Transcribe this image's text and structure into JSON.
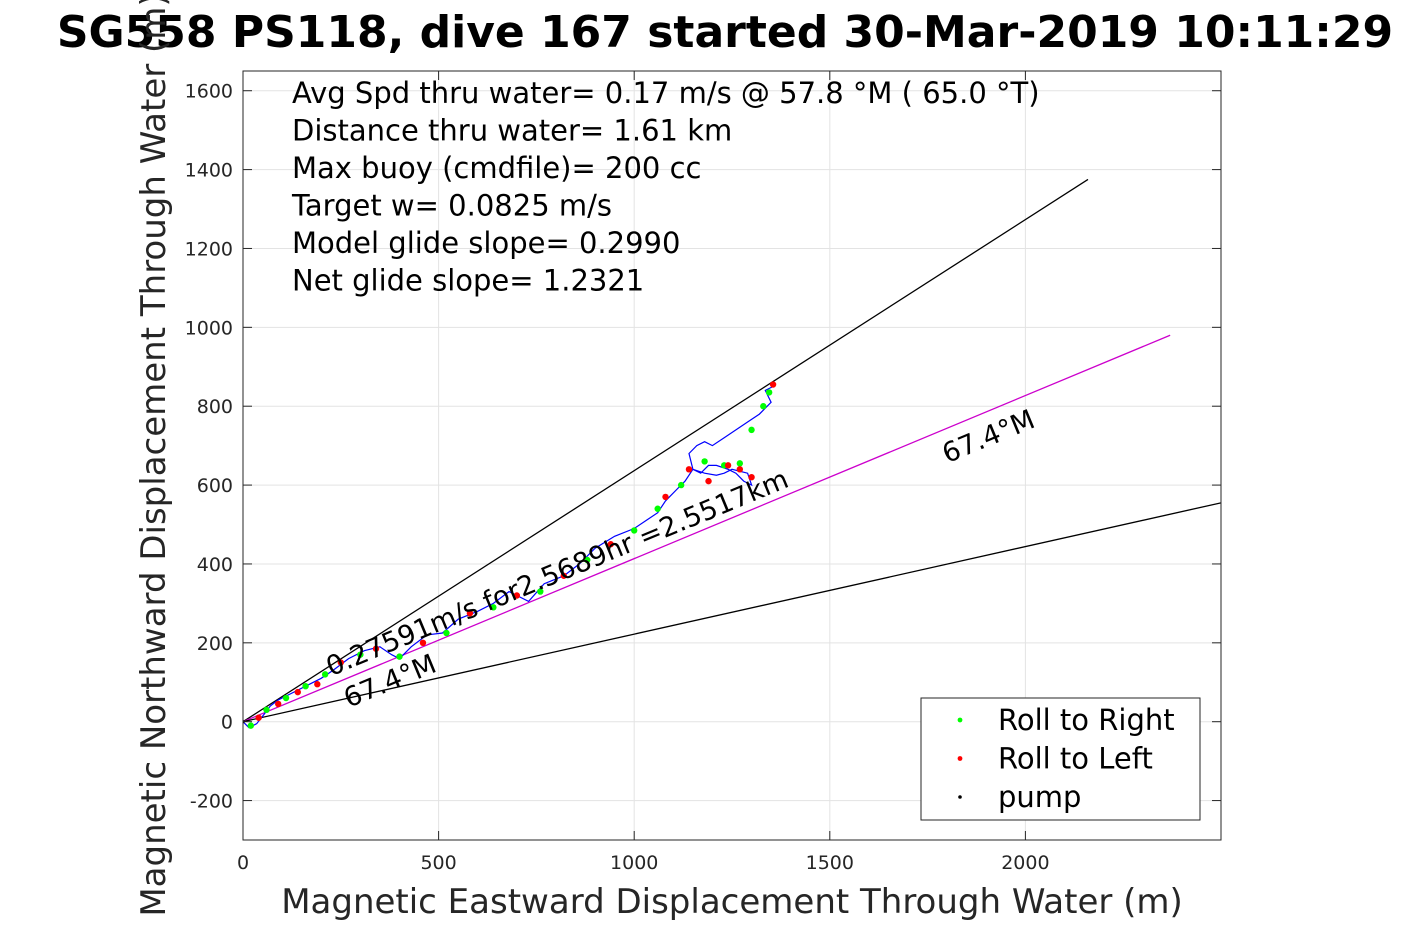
{
  "chart_data": {
    "type": "line",
    "title": "SG558 PS118, dive 167 started 30-Mar-2019 10:11:29",
    "xlabel": "Magnetic Eastward Displacement Through Water (m)",
    "ylabel": "Magnetic Northward Displacement Through Water (m)",
    "xlim": [
      0,
      2500
    ],
    "ylim": [
      -300,
      1650
    ],
    "xticks": [
      0,
      500,
      1000,
      1500,
      2000
    ],
    "yticks": [
      -200,
      0,
      200,
      400,
      600,
      800,
      1000,
      1200,
      1400,
      1600
    ],
    "grid": true,
    "info_lines": [
      "Avg Spd thru water=  0.17 m/s @  57.8 °M ( 65.0 °T)",
      "Distance thru water=  1.61 km",
      "Max buoy (cmdfile)= 200 cc",
      "Target w= 0.0825 m/s",
      "Model glide slope= 0.2990",
      "Net glide slope= 1.2321"
    ],
    "reference_lines": [
      {
        "x": [
          0,
          2160
        ],
        "y": [
          0,
          1375
        ],
        "color": "#000000"
      },
      {
        "x": [
          0,
          2370
        ],
        "y": [
          0,
          980
        ],
        "color": "#cc00cc"
      },
      {
        "x": [
          0,
          2500
        ],
        "y": [
          0,
          555
        ],
        "color": "#000000"
      }
    ],
    "annotations": [
      {
        "text": "0.27591m/s for2.5689hr =2.5517km",
        "x": 225,
        "y": 115,
        "angle": 22.5
      },
      {
        "text": "67.4°M",
        "x": 1800,
        "y": 655,
        "angle": 22.5
      },
      {
        "text": "67.4°M",
        "x": 270,
        "y": 35,
        "angle": 22.5
      }
    ],
    "track": {
      "color": "#0000ff",
      "x": [
        0,
        15,
        35,
        55,
        70,
        90,
        120,
        160,
        200,
        230,
        270,
        310,
        350,
        380,
        400,
        430,
        470,
        510,
        550,
        600,
        640,
        680,
        730,
        770,
        820,
        860,
        900,
        950,
        1000,
        1030,
        1060,
        1080,
        1110,
        1130,
        1150,
        1170,
        1190,
        1210,
        1240,
        1260,
        1280,
        1300,
        1290,
        1250,
        1230,
        1210,
        1180,
        1150,
        1140,
        1160,
        1180,
        1200,
        1230,
        1260,
        1290,
        1320,
        1350,
        1335,
        1355
      ],
      "y": [
        0,
        -15,
        -5,
        20,
        40,
        55,
        70,
        90,
        110,
        130,
        160,
        180,
        190,
        170,
        160,
        190,
        220,
        225,
        260,
        280,
        300,
        330,
        305,
        350,
        370,
        400,
        440,
        470,
        490,
        510,
        530,
        560,
        590,
        610,
        640,
        630,
        650,
        650,
        640,
        630,
        610,
        600,
        630,
        640,
        630,
        625,
        630,
        640,
        680,
        700,
        710,
        700,
        720,
        740,
        760,
        780,
        810,
        840,
        850
      ]
    },
    "series": [
      {
        "name": "Roll to Right",
        "color": "#00ff00",
        "marker": "dot",
        "x": [
          20,
          60,
          110,
          160,
          210,
          300,
          400,
          520,
          640,
          760,
          880,
          1000,
          1060,
          1120,
          1180,
          1230,
          1270,
          1300,
          1330,
          1345
        ],
        "y": [
          -10,
          30,
          60,
          90,
          120,
          170,
          165,
          225,
          290,
          330,
          410,
          485,
          540,
          600,
          660,
          650,
          655,
          740,
          800,
          835
        ]
      },
      {
        "name": "Roll to Left",
        "color": "#ff0000",
        "marker": "dot",
        "x": [
          40,
          90,
          140,
          190,
          250,
          340,
          460,
          580,
          700,
          820,
          940,
          1080,
          1140,
          1190,
          1240,
          1270,
          1300,
          1355
        ],
        "y": [
          10,
          45,
          75,
          95,
          150,
          185,
          200,
          275,
          320,
          370,
          450,
          570,
          640,
          610,
          650,
          640,
          620,
          855
        ]
      },
      {
        "name": "pump",
        "color": "#000000",
        "marker": "dot",
        "x": [
          0
        ],
        "y": [
          0
        ]
      }
    ],
    "legend": {
      "location": "bottom-right"
    }
  }
}
